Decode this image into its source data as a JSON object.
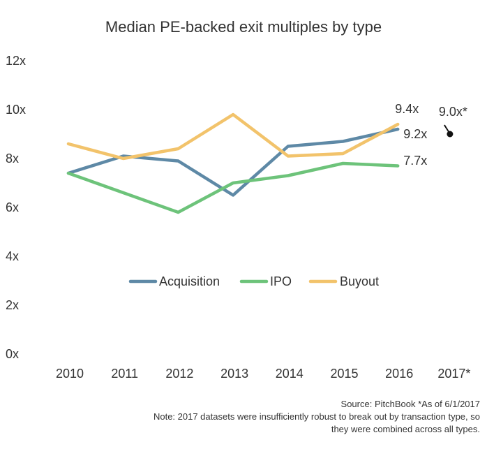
{
  "chart_data": {
    "type": "line",
    "title": "Median PE-backed exit multiples by type",
    "categories": [
      "2010",
      "2011",
      "2012",
      "2013",
      "2014",
      "2015",
      "2016",
      "2017*"
    ],
    "yticks": [
      "0x",
      "2x",
      "4x",
      "6x",
      "8x",
      "10x",
      "12x"
    ],
    "ylim": [
      0,
      12
    ],
    "grid": false,
    "legend_position": "center",
    "series": [
      {
        "name": "Acquisition",
        "color": "#5E89A6",
        "values": [
          7.4,
          8.1,
          7.9,
          6.5,
          8.5,
          8.7,
          9.2,
          null
        ]
      },
      {
        "name": "IPO",
        "color": "#6DC37A",
        "values": [
          7.4,
          6.6,
          5.8,
          7.0,
          7.3,
          7.8,
          7.7,
          null
        ]
      },
      {
        "name": "Buyout",
        "color": "#F2C36B",
        "values": [
          8.6,
          8.0,
          8.4,
          9.8,
          8.1,
          8.2,
          9.4,
          null
        ]
      }
    ],
    "single_points": [
      {
        "label": "9.0x*",
        "x": "2017*",
        "y": 9.0,
        "color": "#111111"
      }
    ],
    "data_labels": [
      {
        "text": "9.4x",
        "series": "Buyout"
      },
      {
        "text": "9.2x",
        "series": "Acquisition"
      },
      {
        "text": "7.7x",
        "series": "IPO"
      },
      {
        "text": "9.0x*",
        "series": "combined"
      }
    ],
    "source": "Source: PitchBook *As of 6/1/2017",
    "notes": [
      "Note: 2017 datasets were insufficiently robust to break out by transaction type, so",
      "they were combined across all types."
    ]
  }
}
